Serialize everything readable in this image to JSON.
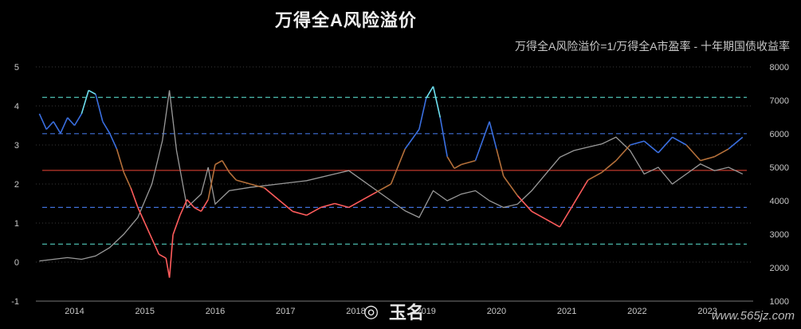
{
  "header": {
    "title": "万得全A风险溢价",
    "subtitle": "万得全A风险溢价=1/万得全A市盈率 - 十年期国债收益率"
  },
  "watermark": {
    "logo_icon": "weibo-icon",
    "name": "玉名",
    "site": "www.565jz.com"
  },
  "chart_data": {
    "type": "line",
    "title": "万得全A风险溢价",
    "subtitle": "万得全A风险溢价=1/万得全A市盈率 - 十年期国债收益率",
    "x_ticks": [
      "2014",
      "2015",
      "2016",
      "2017",
      "2018",
      "2019",
      "2020",
      "2021",
      "2022",
      "2023"
    ],
    "y_left": {
      "range": [
        -1,
        5
      ],
      "ticks": [
        "-1",
        "0",
        "1",
        "2",
        "3",
        "4",
        "5"
      ]
    },
    "y_right": {
      "range": [
        1000,
        8000
      ],
      "ticks": [
        "1000",
        "2000",
        "3000",
        "4000",
        "5000",
        "6000",
        "7000",
        "8000"
      ]
    },
    "reference_lines": [
      {
        "value": 4.22,
        "color": "#4fc3b5"
      },
      {
        "value": 3.29,
        "color": "#3f6fd8"
      },
      {
        "value": 2.35,
        "color": "#c0392b"
      },
      {
        "value": 1.4,
        "color": "#3f6fd8"
      },
      {
        "value": 0.46,
        "color": "#4fc3b5"
      }
    ],
    "series": [
      {
        "axis": "left",
        "color_scale": {
          "low": "#ff5c5c",
          "mid": "#b5703a",
          "high": "#3a6fe0",
          "top": "#6ee0f0"
        },
        "x": [
          2013.6,
          2013.7,
          2013.8,
          2013.9,
          2014.0,
          2014.1,
          2014.2,
          2014.3,
          2014.4,
          2014.5,
          2014.6,
          2014.7,
          2014.8,
          2014.9,
          2015.0,
          2015.1,
          2015.2,
          2015.3,
          2015.4,
          2015.45,
          2015.5,
          2015.6,
          2015.7,
          2015.8,
          2015.9,
          2016.0,
          2016.1,
          2016.2,
          2016.3,
          2016.4,
          2016.6,
          2016.8,
          2017.0,
          2017.2,
          2017.4,
          2017.6,
          2017.8,
          2018.0,
          2018.2,
          2018.4,
          2018.6,
          2018.8,
          2019.0,
          2019.1,
          2019.2,
          2019.3,
          2019.4,
          2019.5,
          2019.6,
          2019.8,
          2020.0,
          2020.1,
          2020.2,
          2020.4,
          2020.6,
          2020.8,
          2021.0,
          2021.2,
          2021.4,
          2021.6,
          2021.8,
          2022.0,
          2022.2,
          2022.4,
          2022.6,
          2022.8,
          2023.0,
          2023.2,
          2023.4,
          2023.6
        ],
        "y": [
          3.8,
          3.4,
          3.6,
          3.3,
          3.7,
          3.5,
          3.8,
          4.4,
          4.3,
          3.6,
          3.3,
          2.9,
          2.3,
          1.9,
          1.4,
          1.0,
          0.6,
          0.2,
          0.1,
          -0.4,
          0.7,
          1.2,
          1.6,
          1.4,
          1.3,
          1.6,
          2.5,
          2.6,
          2.3,
          2.1,
          2.0,
          1.9,
          1.6,
          1.3,
          1.2,
          1.4,
          1.5,
          1.4,
          1.6,
          1.8,
          2.0,
          2.9,
          3.4,
          4.2,
          4.5,
          3.7,
          2.7,
          2.4,
          2.5,
          2.6,
          3.6,
          2.9,
          2.2,
          1.7,
          1.3,
          1.1,
          0.9,
          1.5,
          2.1,
          2.3,
          2.6,
          3.0,
          3.1,
          2.8,
          3.2,
          3.0,
          2.6,
          2.7,
          2.9,
          3.2
        ]
      },
      {
        "axis": "right",
        "color": "#9a9a9a",
        "x": [
          2013.6,
          2013.8,
          2014.0,
          2014.2,
          2014.4,
          2014.6,
          2014.8,
          2015.0,
          2015.2,
          2015.35,
          2015.45,
          2015.55,
          2015.7,
          2015.9,
          2016.0,
          2016.1,
          2016.3,
          2016.6,
          2017.0,
          2017.4,
          2017.8,
          2018.0,
          2018.2,
          2018.4,
          2018.6,
          2018.8,
          2019.0,
          2019.2,
          2019.4,
          2019.6,
          2019.8,
          2020.0,
          2020.2,
          2020.4,
          2020.6,
          2020.8,
          2021.0,
          2021.2,
          2021.4,
          2021.6,
          2021.8,
          2022.0,
          2022.2,
          2022.4,
          2022.6,
          2022.8,
          2023.0,
          2023.2,
          2023.4,
          2023.6
        ],
        "y": [
          2200,
          2250,
          2300,
          2250,
          2350,
          2600,
          3000,
          3500,
          4500,
          5800,
          7300,
          5500,
          3800,
          4200,
          5000,
          3900,
          4300,
          4400,
          4500,
          4600,
          4800,
          4900,
          4600,
          4300,
          4000,
          3700,
          3500,
          4300,
          4000,
          4200,
          4300,
          4000,
          3800,
          3900,
          4300,
          4800,
          5300,
          5500,
          5600,
          5700,
          5900,
          5500,
          4800,
          5000,
          4500,
          4800,
          5100,
          4900,
          5000,
          4800
        ]
      }
    ]
  }
}
